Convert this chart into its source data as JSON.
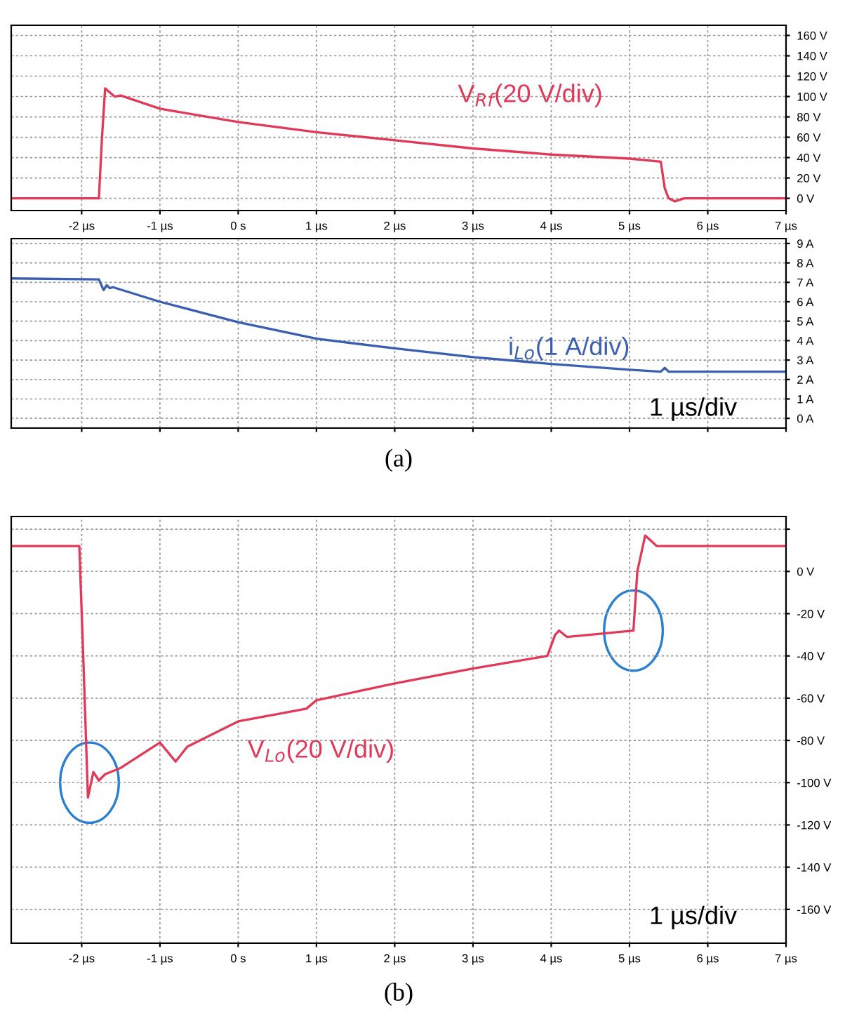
{
  "chart_data": [
    {
      "type": "line",
      "annotations": [
        "V$_{Rf}$(20 V/div)"
      ],
      "series": [
        {
          "color": "#e03a58",
          "x": [
            -2.9,
            -1.78,
            -1.74,
            -1.7,
            -1.64,
            -1.58,
            -1.5,
            -1.0,
            0,
            1,
            2,
            3,
            4,
            5,
            5.4,
            5.45,
            5.5,
            5.58,
            5.7,
            7.0
          ],
          "values": [
            0,
            0,
            60,
            108,
            104,
            100,
            101,
            88,
            75,
            65,
            57,
            49,
            43,
            39,
            36,
            10,
            0,
            -3,
            0,
            0
          ]
        }
      ],
      "xlim": [
        -2.9,
        7
      ],
      "ylim": [
        -12,
        170
      ],
      "xticks": [
        {
          "value": -2,
          "label": "-2 µs"
        },
        {
          "value": -1,
          "label": "-1 µs"
        },
        {
          "value": 0,
          "label": "0 s"
        },
        {
          "value": 1,
          "label": "1 µs"
        },
        {
          "value": 2,
          "label": "2 µs"
        },
        {
          "value": 3,
          "label": "3 µs"
        },
        {
          "value": 4,
          "label": "4 µs"
        },
        {
          "value": 5,
          "label": "5 µs"
        },
        {
          "value": 6,
          "label": "6 µs"
        },
        {
          "value": 7,
          "label": "7 µs"
        }
      ],
      "yticks": [
        {
          "value": 0,
          "label": "0 V"
        },
        {
          "value": 20,
          "label": "20 V"
        },
        {
          "value": 40,
          "label": "40 V"
        },
        {
          "value": 60,
          "label": "60 V"
        },
        {
          "value": 80,
          "label": "80 V"
        },
        {
          "value": 100,
          "label": "100 V"
        },
        {
          "value": 120,
          "label": "120 V"
        },
        {
          "value": 140,
          "label": "140 V"
        },
        {
          "value": 160,
          "label": "160 V"
        }
      ],
      "grid": true
    },
    {
      "type": "line",
      "annotations": [
        "i$_{Lo}$(1 A/div)",
        "1 µs/div",
        "(a)"
      ],
      "series": [
        {
          "color": "#3b5fb0",
          "x": [
            -2.9,
            -1.78,
            -1.72,
            -1.68,
            -1.64,
            -1.6,
            -1.0,
            0,
            1,
            2,
            3,
            4,
            5,
            5.4,
            5.45,
            5.5,
            7.0
          ],
          "values": [
            7.2,
            7.15,
            6.6,
            6.85,
            6.7,
            6.75,
            6.0,
            4.95,
            4.1,
            3.6,
            3.15,
            2.8,
            2.5,
            2.4,
            2.6,
            2.4,
            2.4
          ]
        }
      ],
      "xlim": [
        -2.9,
        7
      ],
      "ylim": [
        -0.5,
        9.25
      ],
      "yticks": [
        {
          "value": 0,
          "label": "0 A"
        },
        {
          "value": 1,
          "label": "1 A"
        },
        {
          "value": 2,
          "label": "2 A"
        },
        {
          "value": 3,
          "label": "3 A"
        },
        {
          "value": 4,
          "label": "4 A"
        },
        {
          "value": 5,
          "label": "5 A"
        },
        {
          "value": 6,
          "label": "6 A"
        },
        {
          "value": 7,
          "label": "7 A"
        },
        {
          "value": 8,
          "label": "8 A"
        },
        {
          "value": 9,
          "label": "9 A"
        }
      ],
      "tick_labels": "y",
      "grid": true
    },
    {
      "type": "line",
      "annotations": [
        "V$_{Lo}$(20 V/div)",
        "1 µs/div",
        "(b)"
      ],
      "series": [
        {
          "color": "#e03a58",
          "x": [
            -2.9,
            -2.03,
            -1.98,
            -1.92,
            -1.85,
            -1.78,
            -1.7,
            -1.5,
            -1.0,
            -0.8,
            -0.65,
            0,
            0.87,
            1,
            2,
            3,
            3.95,
            4.05,
            4.1,
            4.2,
            5.05,
            5.1,
            5.2,
            5.35,
            7.0
          ],
          "values": [
            12,
            12,
            -40,
            -107,
            -95,
            -99,
            -96,
            -93,
            -81,
            -90,
            -83,
            -71,
            -65,
            -61,
            -53,
            -46,
            -40,
            -30,
            -28,
            -31,
            -28,
            0,
            17,
            12,
            12
          ]
        }
      ],
      "xlim": [
        -2.9,
        7
      ],
      "ylim": [
        -176,
        26
      ],
      "xticks": [
        {
          "value": -2,
          "label": "-2 µs"
        },
        {
          "value": -1,
          "label": "-1 µs"
        },
        {
          "value": 0,
          "label": "0 s"
        },
        {
          "value": 1,
          "label": "1 µs"
        },
        {
          "value": 2,
          "label": "2 µs"
        },
        {
          "value": 3,
          "label": "3 µs"
        },
        {
          "value": 4,
          "label": "4 µs"
        },
        {
          "value": 5,
          "label": "5 µs"
        },
        {
          "value": 6,
          "label": "6 µs"
        },
        {
          "value": 7,
          "label": "7 µs"
        }
      ],
      "yticks": [
        {
          "value": 20,
          "label": null
        },
        {
          "value": 0,
          "label": "0 V"
        },
        {
          "value": -20,
          "label": "-20 V"
        },
        {
          "value": -40,
          "label": "-40 V"
        },
        {
          "value": -60,
          "label": "-60 V"
        },
        {
          "value": -80,
          "label": "-80 V"
        },
        {
          "value": -100,
          "label": "-100 V"
        },
        {
          "value": -120,
          "label": "-120 V"
        },
        {
          "value": -140,
          "label": "-140 V"
        },
        {
          "value": -160,
          "label": "-160 V"
        }
      ],
      "grid": true
    }
  ]
}
